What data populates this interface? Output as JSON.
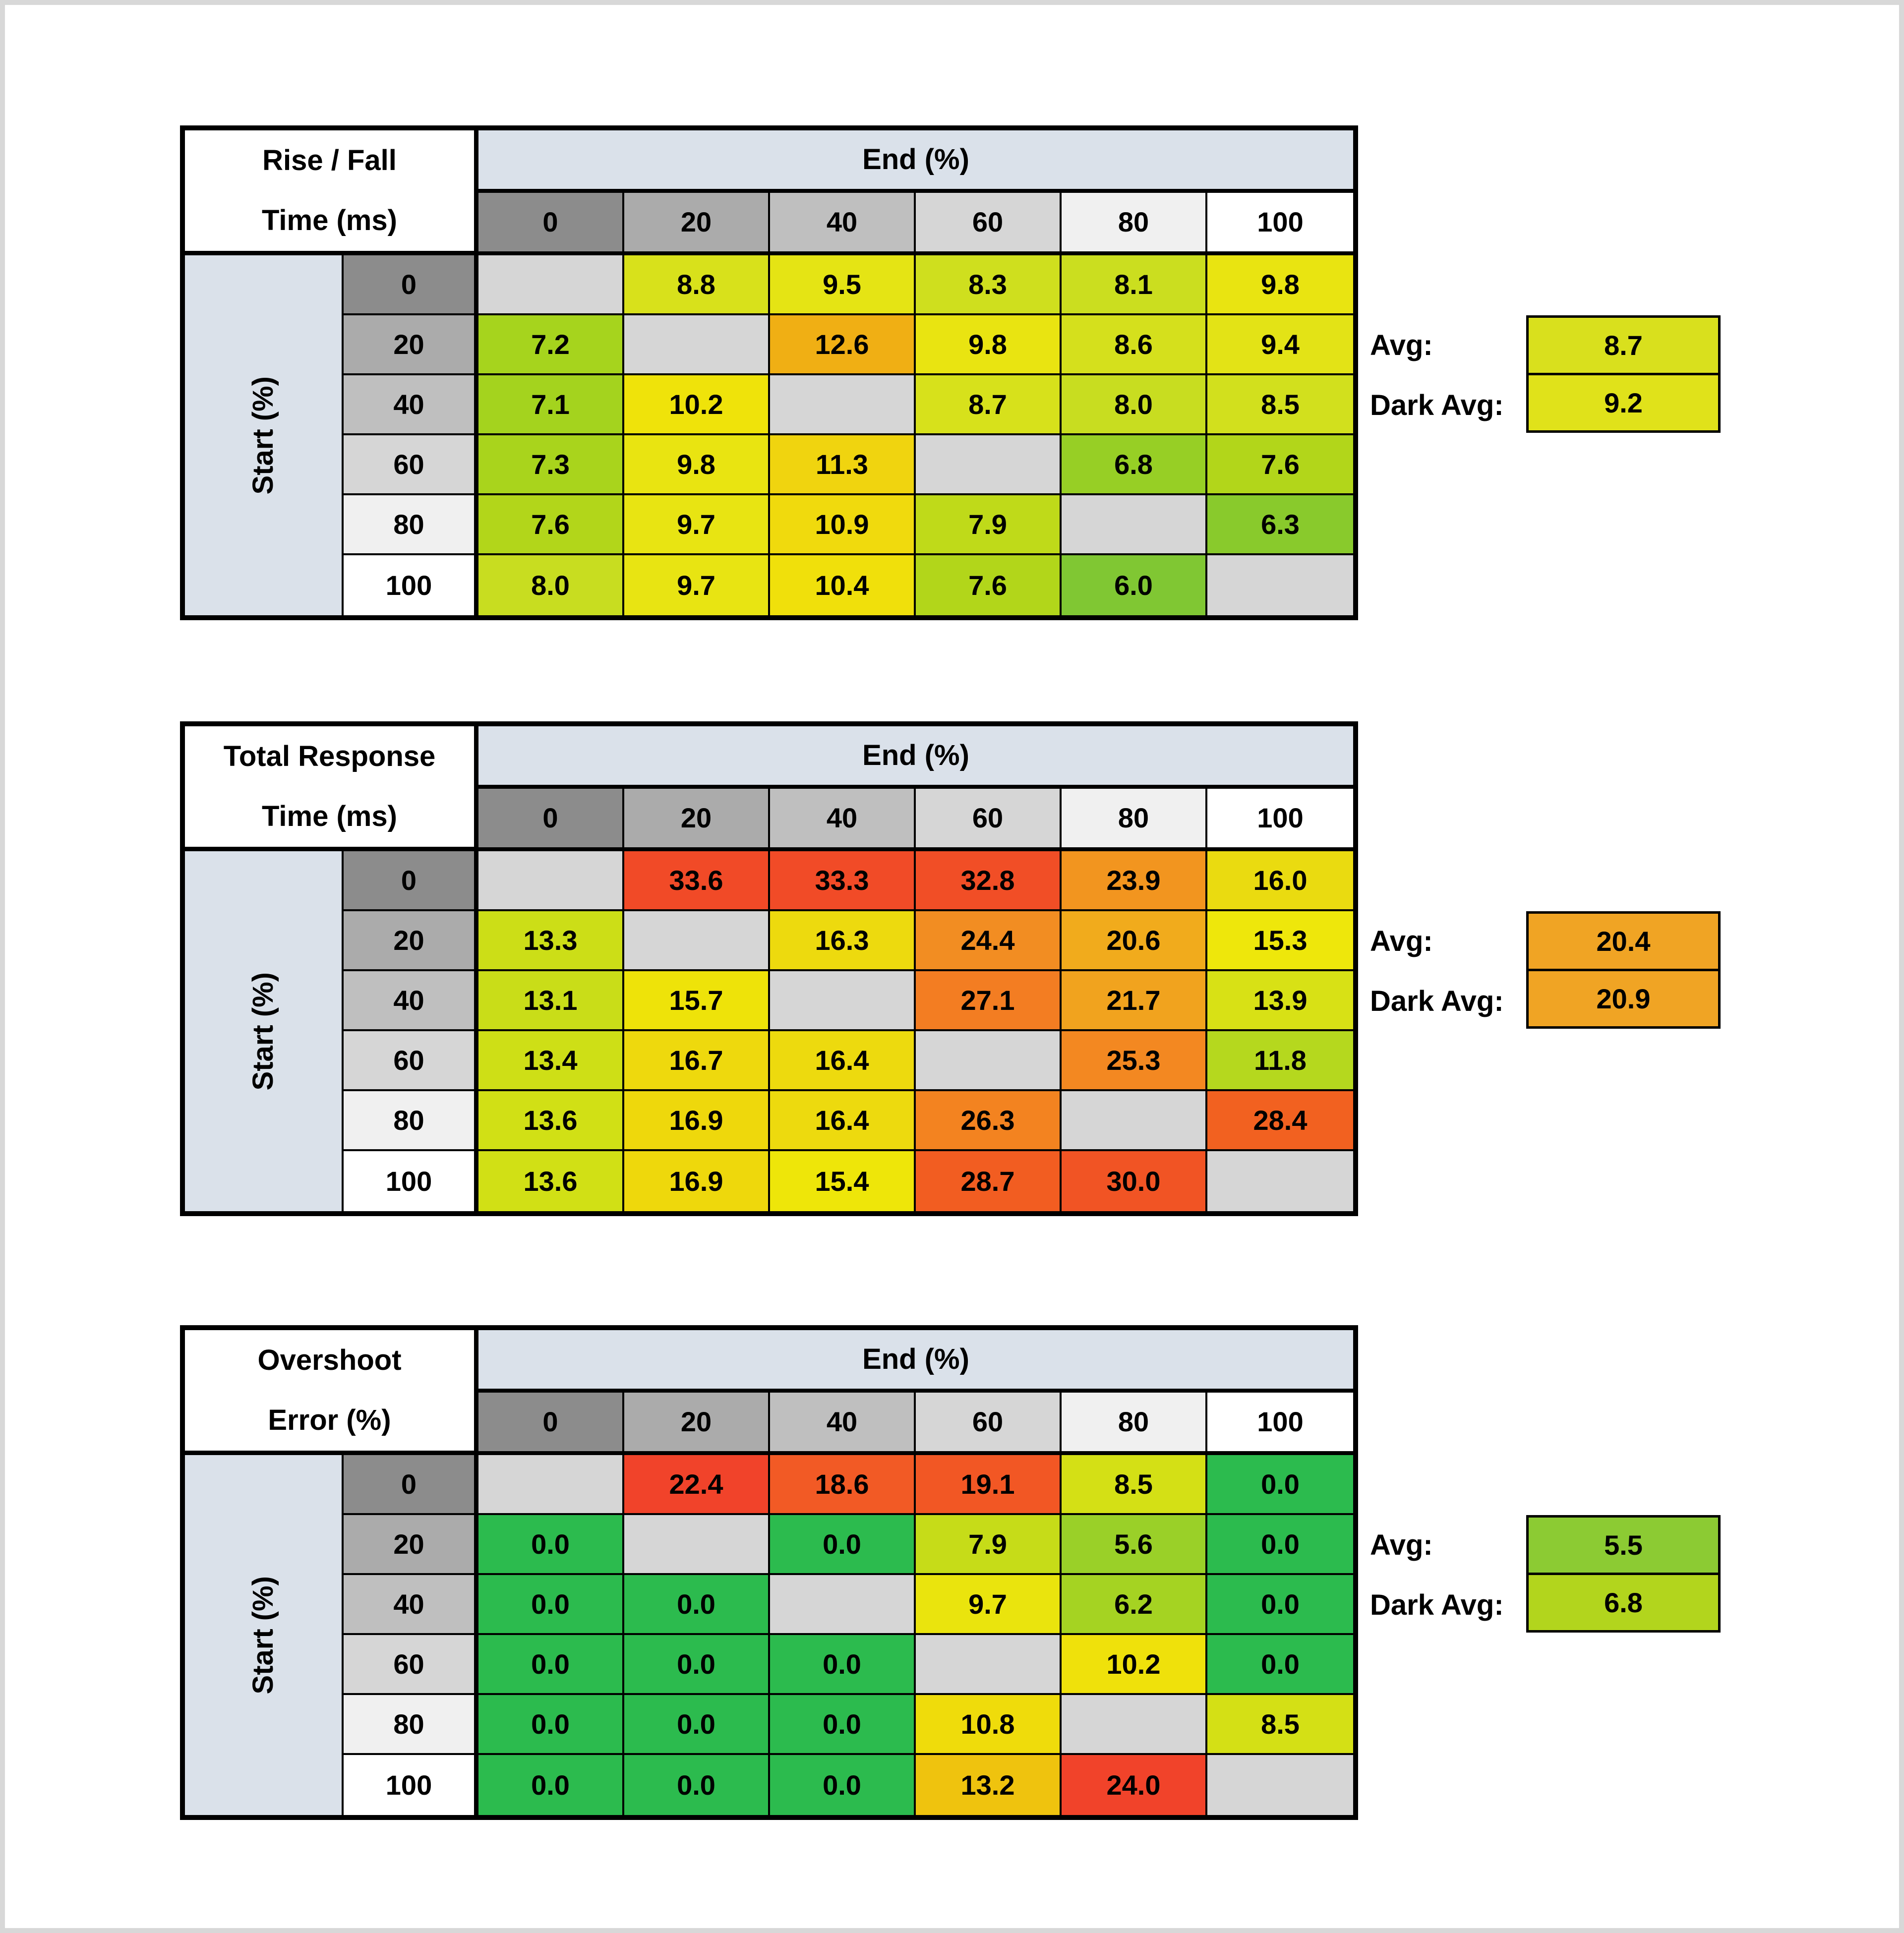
{
  "axis": {
    "col_title": "End (%)",
    "row_title": "Start (%)",
    "ticks": [
      "0",
      "20",
      "40",
      "60",
      "80",
      "100"
    ]
  },
  "annotations": {
    "avg_label": "Avg:",
    "dark_avg_label": "Dark Avg:"
  },
  "header_grays": [
    "#8C8C8C",
    "#ABABAB",
    "#BFBFBF",
    "#D6D6D6",
    "#F0F0F0",
    "#FFFFFF"
  ],
  "diagonal_color": "#D6D6D6",
  "band_color": "#DAE1EA",
  "border_color": "#000000",
  "page_edge_color": "#D8D8D8",
  "tables": [
    {
      "title_line1": "Rise / Fall",
      "title_line2": "Time (ms)",
      "avg_color": "#D9E01D",
      "dark_avg_color": "#E0E21A",
      "cell_colors": [
        [
          null,
          "#D8E11B",
          "#E5E414",
          "#CFDF1E",
          "#CBDE1F",
          "#E9E411"
        ],
        [
          "#A6D41D",
          null,
          "#F0AF14",
          "#E9E411",
          "#D5E01C",
          "#E3E316"
        ],
        [
          "#A4D31E",
          "#EFE30A",
          null,
          "#D7E11B",
          "#C8DD20",
          "#D2E01D"
        ],
        [
          "#A9D41C",
          "#E9E411",
          "#F0D40F",
          null,
          "#97CF25",
          "#B2D61A"
        ],
        [
          "#B2D61A",
          "#E8E412",
          "#F0DA0D",
          "#BFDA19",
          null,
          "#89CA2C"
        ],
        [
          "#C8DD20",
          "#E8E412",
          "#F0E00B",
          "#B2D61A",
          "#80C733",
          null
        ]
      ]
    },
    {
      "title_line1": "Total Response",
      "title_line2": "Time (ms)",
      "avg_color": "#F0A424",
      "dark_avg_color": "#F0A424",
      "cell_colors": [
        [
          null,
          "#F14A27",
          "#F14B27",
          "#F14E26",
          "#F2951F",
          "#EADB10"
        ],
        [
          "#CCDE17",
          null,
          "#EDDA0E",
          "#F28D22",
          "#F1AB1C",
          "#EEE70B"
        ],
        [
          "#C9DD18",
          "#EEE309",
          null,
          "#F37D22",
          "#F1A31E",
          "#D8E115"
        ],
        [
          "#CEDF16",
          "#EED90D",
          "#EDDA0E",
          null,
          "#F38821",
          "#B5D81E"
        ],
        [
          "#D1E015",
          "#EED80C",
          "#EDDA0E",
          "#F38320",
          null,
          "#F26120"
        ],
        [
          "#D1E015",
          "#EED80C",
          "#EEE609",
          "#F25D21",
          "#F15424",
          null
        ]
      ]
    },
    {
      "title_line1": "Overshoot",
      "title_line2": "Error (%)",
      "avg_color": "#8CCB33",
      "dark_avg_color": "#B2D51D",
      "cell_colors": [
        [
          null,
          "#F1432A",
          "#F25A25",
          "#F25724",
          "#D4E015",
          "#2CBB4E"
        ],
        [
          "#2CBB4E",
          null,
          "#2CBB4E",
          "#C6DC18",
          "#9AD028",
          "#2CBB4E"
        ],
        [
          "#2CBB4E",
          "#2CBB4E",
          null,
          "#EAE40D",
          "#A5D322",
          "#2CBB4E"
        ],
        [
          "#2CBB4E",
          "#2CBB4E",
          "#2CBB4E",
          null,
          "#EFE10B",
          "#2CBB4E"
        ],
        [
          "#2CBB4E",
          "#2CBB4E",
          "#2CBB4E",
          "#EFDC0B",
          null,
          "#D4E015"
        ],
        [
          "#2CBB4E",
          "#2CBB4E",
          "#2CBB4E",
          "#EFC30E",
          "#F1432A",
          null
        ]
      ]
    }
  ],
  "chart_data": [
    {
      "type": "heatmap",
      "title": "Rise / Fall Time (ms)",
      "xlabel": "End (%)",
      "ylabel": "Start (%)",
      "x": [
        0,
        20,
        40,
        60,
        80,
        100
      ],
      "y": [
        0,
        20,
        40,
        60,
        80,
        100
      ],
      "values": [
        [
          null,
          8.8,
          9.5,
          8.3,
          8.1,
          9.8
        ],
        [
          7.2,
          null,
          12.6,
          9.8,
          8.6,
          9.4
        ],
        [
          7.1,
          10.2,
          null,
          8.7,
          8.0,
          8.5
        ],
        [
          7.3,
          9.8,
          11.3,
          null,
          6.8,
          7.6
        ],
        [
          7.6,
          9.7,
          10.9,
          7.9,
          null,
          6.3
        ],
        [
          8.0,
          9.7,
          10.4,
          7.6,
          6.0,
          null
        ]
      ],
      "avg": 8.7,
      "dark_avg": 9.2
    },
    {
      "type": "heatmap",
      "title": "Total Response Time (ms)",
      "xlabel": "End (%)",
      "ylabel": "Start (%)",
      "x": [
        0,
        20,
        40,
        60,
        80,
        100
      ],
      "y": [
        0,
        20,
        40,
        60,
        80,
        100
      ],
      "values": [
        [
          null,
          33.6,
          33.3,
          32.8,
          23.9,
          16.0
        ],
        [
          13.3,
          null,
          16.3,
          24.4,
          20.6,
          15.3
        ],
        [
          13.1,
          15.7,
          null,
          27.1,
          21.7,
          13.9
        ],
        [
          13.4,
          16.7,
          16.4,
          null,
          25.3,
          11.8
        ],
        [
          13.6,
          16.9,
          16.4,
          26.3,
          null,
          28.4
        ],
        [
          13.6,
          16.9,
          15.4,
          28.7,
          30.0,
          null
        ]
      ],
      "avg": 20.4,
      "dark_avg": 20.9
    },
    {
      "type": "heatmap",
      "title": "Overshoot Error (%)",
      "xlabel": "End (%)",
      "ylabel": "Start (%)",
      "x": [
        0,
        20,
        40,
        60,
        80,
        100
      ],
      "y": [
        0,
        20,
        40,
        60,
        80,
        100
      ],
      "values": [
        [
          null,
          22.4,
          18.6,
          19.1,
          8.5,
          0.0
        ],
        [
          0.0,
          null,
          0.0,
          7.9,
          5.6,
          0.0
        ],
        [
          0.0,
          0.0,
          null,
          9.7,
          6.2,
          0.0
        ],
        [
          0.0,
          0.0,
          0.0,
          null,
          10.2,
          0.0
        ],
        [
          0.0,
          0.0,
          0.0,
          10.8,
          null,
          8.5
        ],
        [
          0.0,
          0.0,
          0.0,
          13.2,
          24.0,
          null
        ]
      ],
      "avg": 5.5,
      "dark_avg": 6.8
    }
  ]
}
